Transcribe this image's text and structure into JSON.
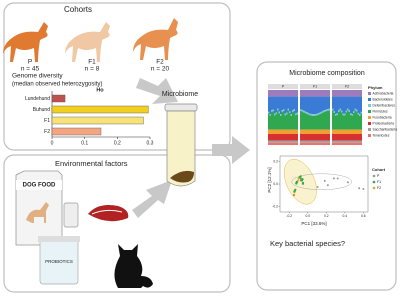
{
  "cohorts": {
    "title": "Cohorts",
    "groups": [
      {
        "label": "P",
        "n": "n = 45"
      },
      {
        "label": "F1",
        "n": "n = 8"
      },
      {
        "label": "F2",
        "n": "n = 20"
      }
    ],
    "diversity_title": "Genome diversity",
    "diversity_subtitle": "(median observed heterozygosity)",
    "chart_data": {
      "type": "bar",
      "orientation": "horizontal",
      "legend": "Ho",
      "categories": [
        "Lundehund",
        "Buhund",
        "F1",
        "F2"
      ],
      "values": [
        0.04,
        0.295,
        0.28,
        0.15
      ],
      "colors": [
        "#c0504d",
        "#f2cf1f",
        "#f7e27a",
        "#f4a582"
      ],
      "xlim": [
        0,
        0.3
      ],
      "xticks": [
        0,
        0.1,
        0.2,
        0.3
      ]
    }
  },
  "environment": {
    "title": "Environmental factors",
    "food": "DOG FOOD",
    "probiotics": "PROBIOTICS"
  },
  "center": {
    "label": "Microbiome"
  },
  "composition": {
    "title": "Microbiome composition",
    "panels": [
      "P",
      "F1",
      "F2"
    ],
    "legend_title": "Phylum",
    "phyla": [
      "Actinobacteria",
      "Bacteroidetes",
      "Deferribacteres",
      "Firmicutes",
      "Fusobacteria",
      "Proteobacteria",
      "Saccharibacteria",
      "Tenericutes"
    ],
    "pca": {
      "xlabel": "PC1 [33.6%]",
      "ylabel": "PC2 [12.1%]",
      "legend_title": "Cohort",
      "groups": [
        "P",
        "F1",
        "F2"
      ],
      "xticks": [
        {
          "value": -0.2,
          "label": "-0.2"
        },
        {
          "value": 0,
          "label": "0.0"
        },
        0.2,
        0.4,
        0.6
      ],
      "yticks": [
        0.2,
        {
          "value": 0,
          "label": "0.0"
        },
        -0.2
      ]
    },
    "question": "Key bacterial species?"
  }
}
